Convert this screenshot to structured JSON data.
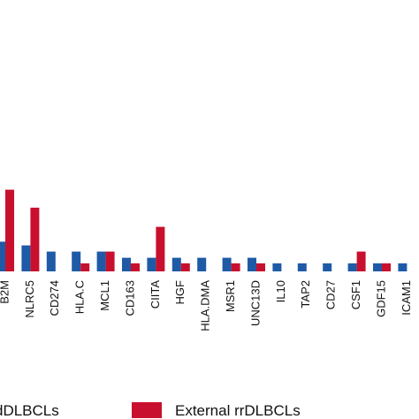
{
  "chart_data": {
    "type": "bar",
    "categories": [
      "B2M",
      "NLRC5",
      "CD274",
      "HLA.C",
      "MCL1",
      "CD163",
      "CIITA",
      "HGF",
      "HLA.DMA",
      "MSR1",
      "UNC13D",
      "IL10",
      "TAP2",
      "CD27",
      "CSF1",
      "GDF15",
      "ICAM1"
    ],
    "series": [
      {
        "name": "dDLBCLs",
        "color": "#1f5aa6",
        "values": [
          4.8,
          4.2,
          3.2,
          3.2,
          3.2,
          2.2,
          2.2,
          2.2,
          2.2,
          2.2,
          2.2,
          1.3,
          1.3,
          1.3,
          1.3,
          1.3,
          1.3
        ]
      },
      {
        "name": "External rrDLBCLs",
        "color": "#c8102e",
        "values": [
          13.2,
          10.3,
          0,
          1.3,
          3.2,
          1.3,
          7.2,
          1.3,
          0,
          1.3,
          1.3,
          0,
          0,
          0,
          3.2,
          1.3,
          0
        ]
      }
    ],
    "ylim": [
      0,
      20
    ],
    "grid": false,
    "legend_position": "bottom"
  }
}
